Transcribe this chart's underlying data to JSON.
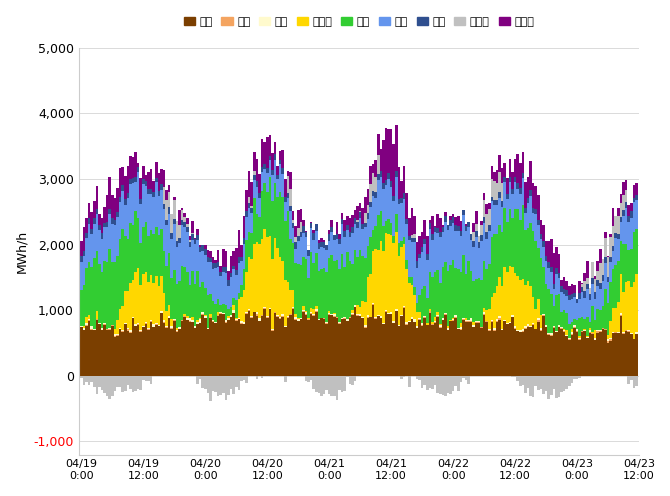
{
  "title": "",
  "ylabel": "MWh/h",
  "ylim": [
    -1200,
    5000
  ],
  "yticks": [
    -1000,
    0,
    1000,
    2000,
    3000,
    4000,
    5000
  ],
  "colors": {
    "石炭": "#7B3F00",
    "石油": "#F4A460",
    "ガス": "#FFFACD",
    "太陽光": "#FFD700",
    "風力": "#32CD32",
    "水力": "#6495ED",
    "地熱": "#2F4F8F",
    "揚水力": "#C0C0C0",
    "連系線": "#800080"
  },
  "legend_order": [
    "石炭",
    "石油",
    "ガス",
    "太陽光",
    "風力",
    "水力",
    "地熱",
    "揚水力",
    "連系線"
  ],
  "n_steps": 120
}
